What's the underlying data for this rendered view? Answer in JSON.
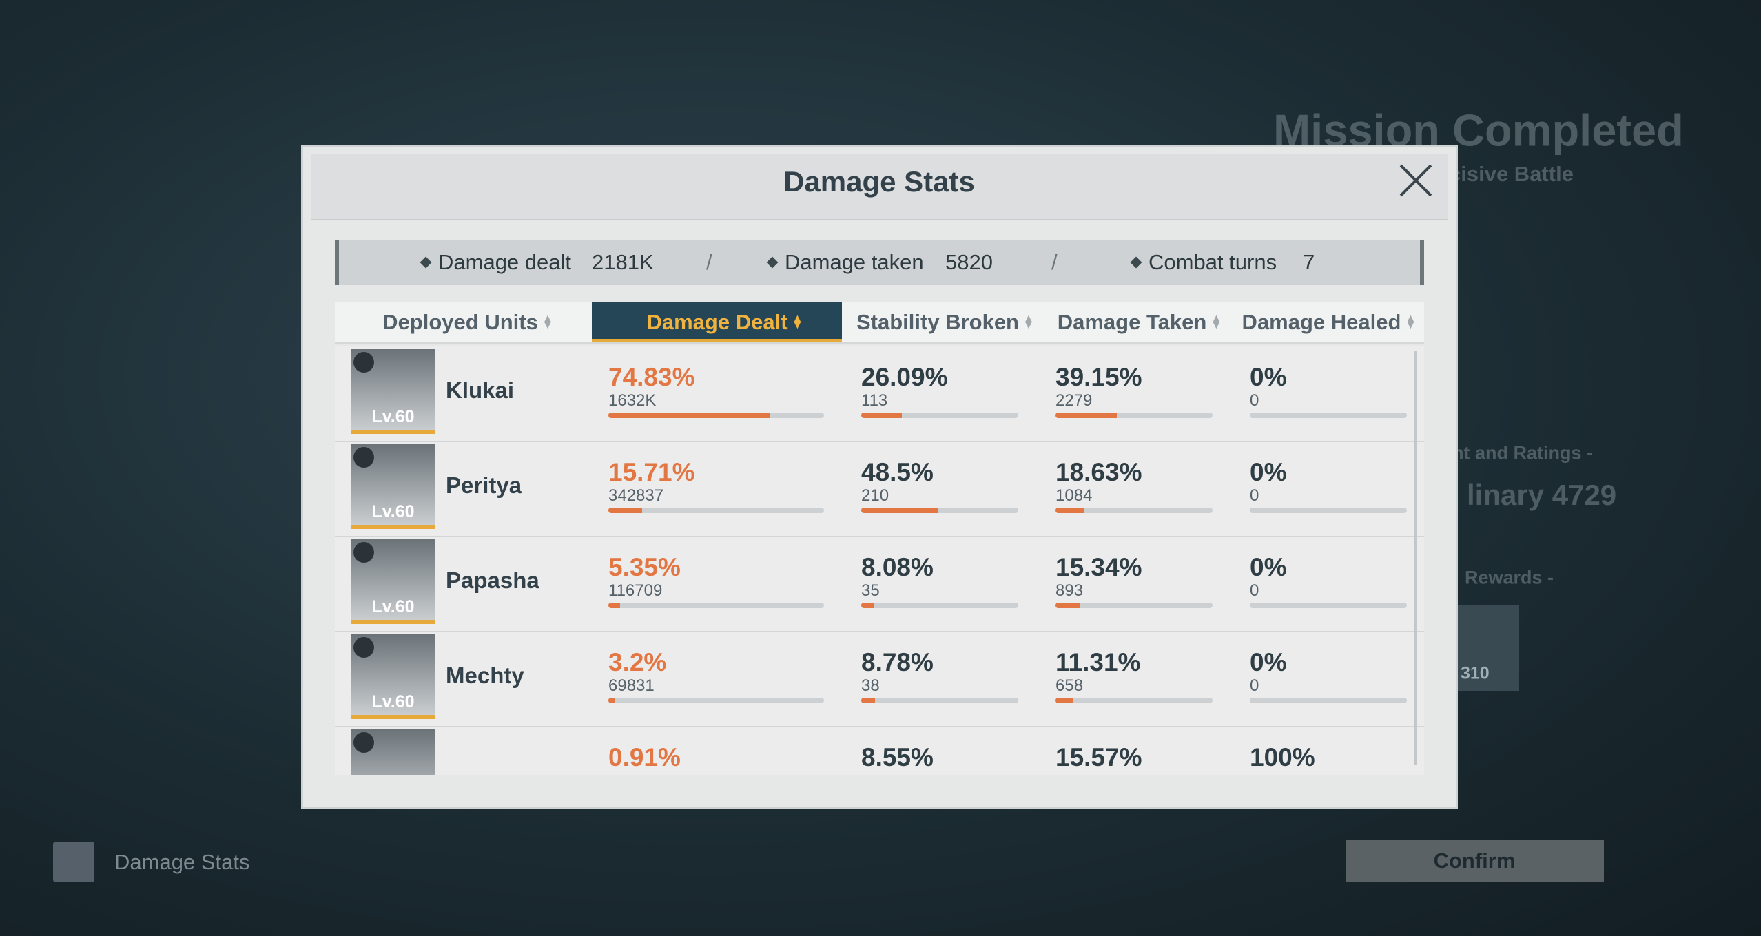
{
  "background": {
    "title": "Mission Completed",
    "subtitle": "cisive Battle",
    "ratings_label": "nt and Ratings -",
    "rating": "linary 4729",
    "rewards_label": "Rewards -",
    "reward_count": "310",
    "confirm": "Confirm",
    "side_button": "Damage Stats"
  },
  "modal": {
    "title": "Damage Stats",
    "summary": [
      {
        "label": "Damage dealt",
        "value": "2181K"
      },
      {
        "label": "Damage taken",
        "value": "5820"
      },
      {
        "label": "Combat turns",
        "value": "7"
      }
    ],
    "separator": "/",
    "columns": [
      "Deployed Units",
      "Damage Dealt",
      "Stability Broken",
      "Damage Taken",
      "Damage Healed"
    ],
    "rows": [
      {
        "name": "Klukai",
        "level": "Lv.60",
        "cells": [
          {
            "pct": "74.83%",
            "value": "1632K"
          },
          {
            "pct": "26.09%",
            "value": "113"
          },
          {
            "pct": "39.15%",
            "value": "2279"
          },
          {
            "pct": "0%",
            "value": "0"
          }
        ]
      },
      {
        "name": "Peritya",
        "level": "Lv.60",
        "cells": [
          {
            "pct": "15.71%",
            "value": "342837"
          },
          {
            "pct": "48.5%",
            "value": "210"
          },
          {
            "pct": "18.63%",
            "value": "1084"
          },
          {
            "pct": "0%",
            "value": "0"
          }
        ]
      },
      {
        "name": "Papasha",
        "level": "Lv.60",
        "cells": [
          {
            "pct": "5.35%",
            "value": "116709"
          },
          {
            "pct": "8.08%",
            "value": "35"
          },
          {
            "pct": "15.34%",
            "value": "893"
          },
          {
            "pct": "0%",
            "value": "0"
          }
        ]
      },
      {
        "name": "Mechty",
        "level": "Lv.60",
        "cells": [
          {
            "pct": "3.2%",
            "value": "69831"
          },
          {
            "pct": "8.78%",
            "value": "38"
          },
          {
            "pct": "11.31%",
            "value": "658"
          },
          {
            "pct": "0%",
            "value": "0"
          }
        ]
      },
      {
        "cells": [
          {
            "pct": "0.91%"
          },
          {
            "pct": "8.55%"
          },
          {
            "pct": "15.57%"
          },
          {
            "pct": "100%"
          }
        ]
      }
    ]
  }
}
